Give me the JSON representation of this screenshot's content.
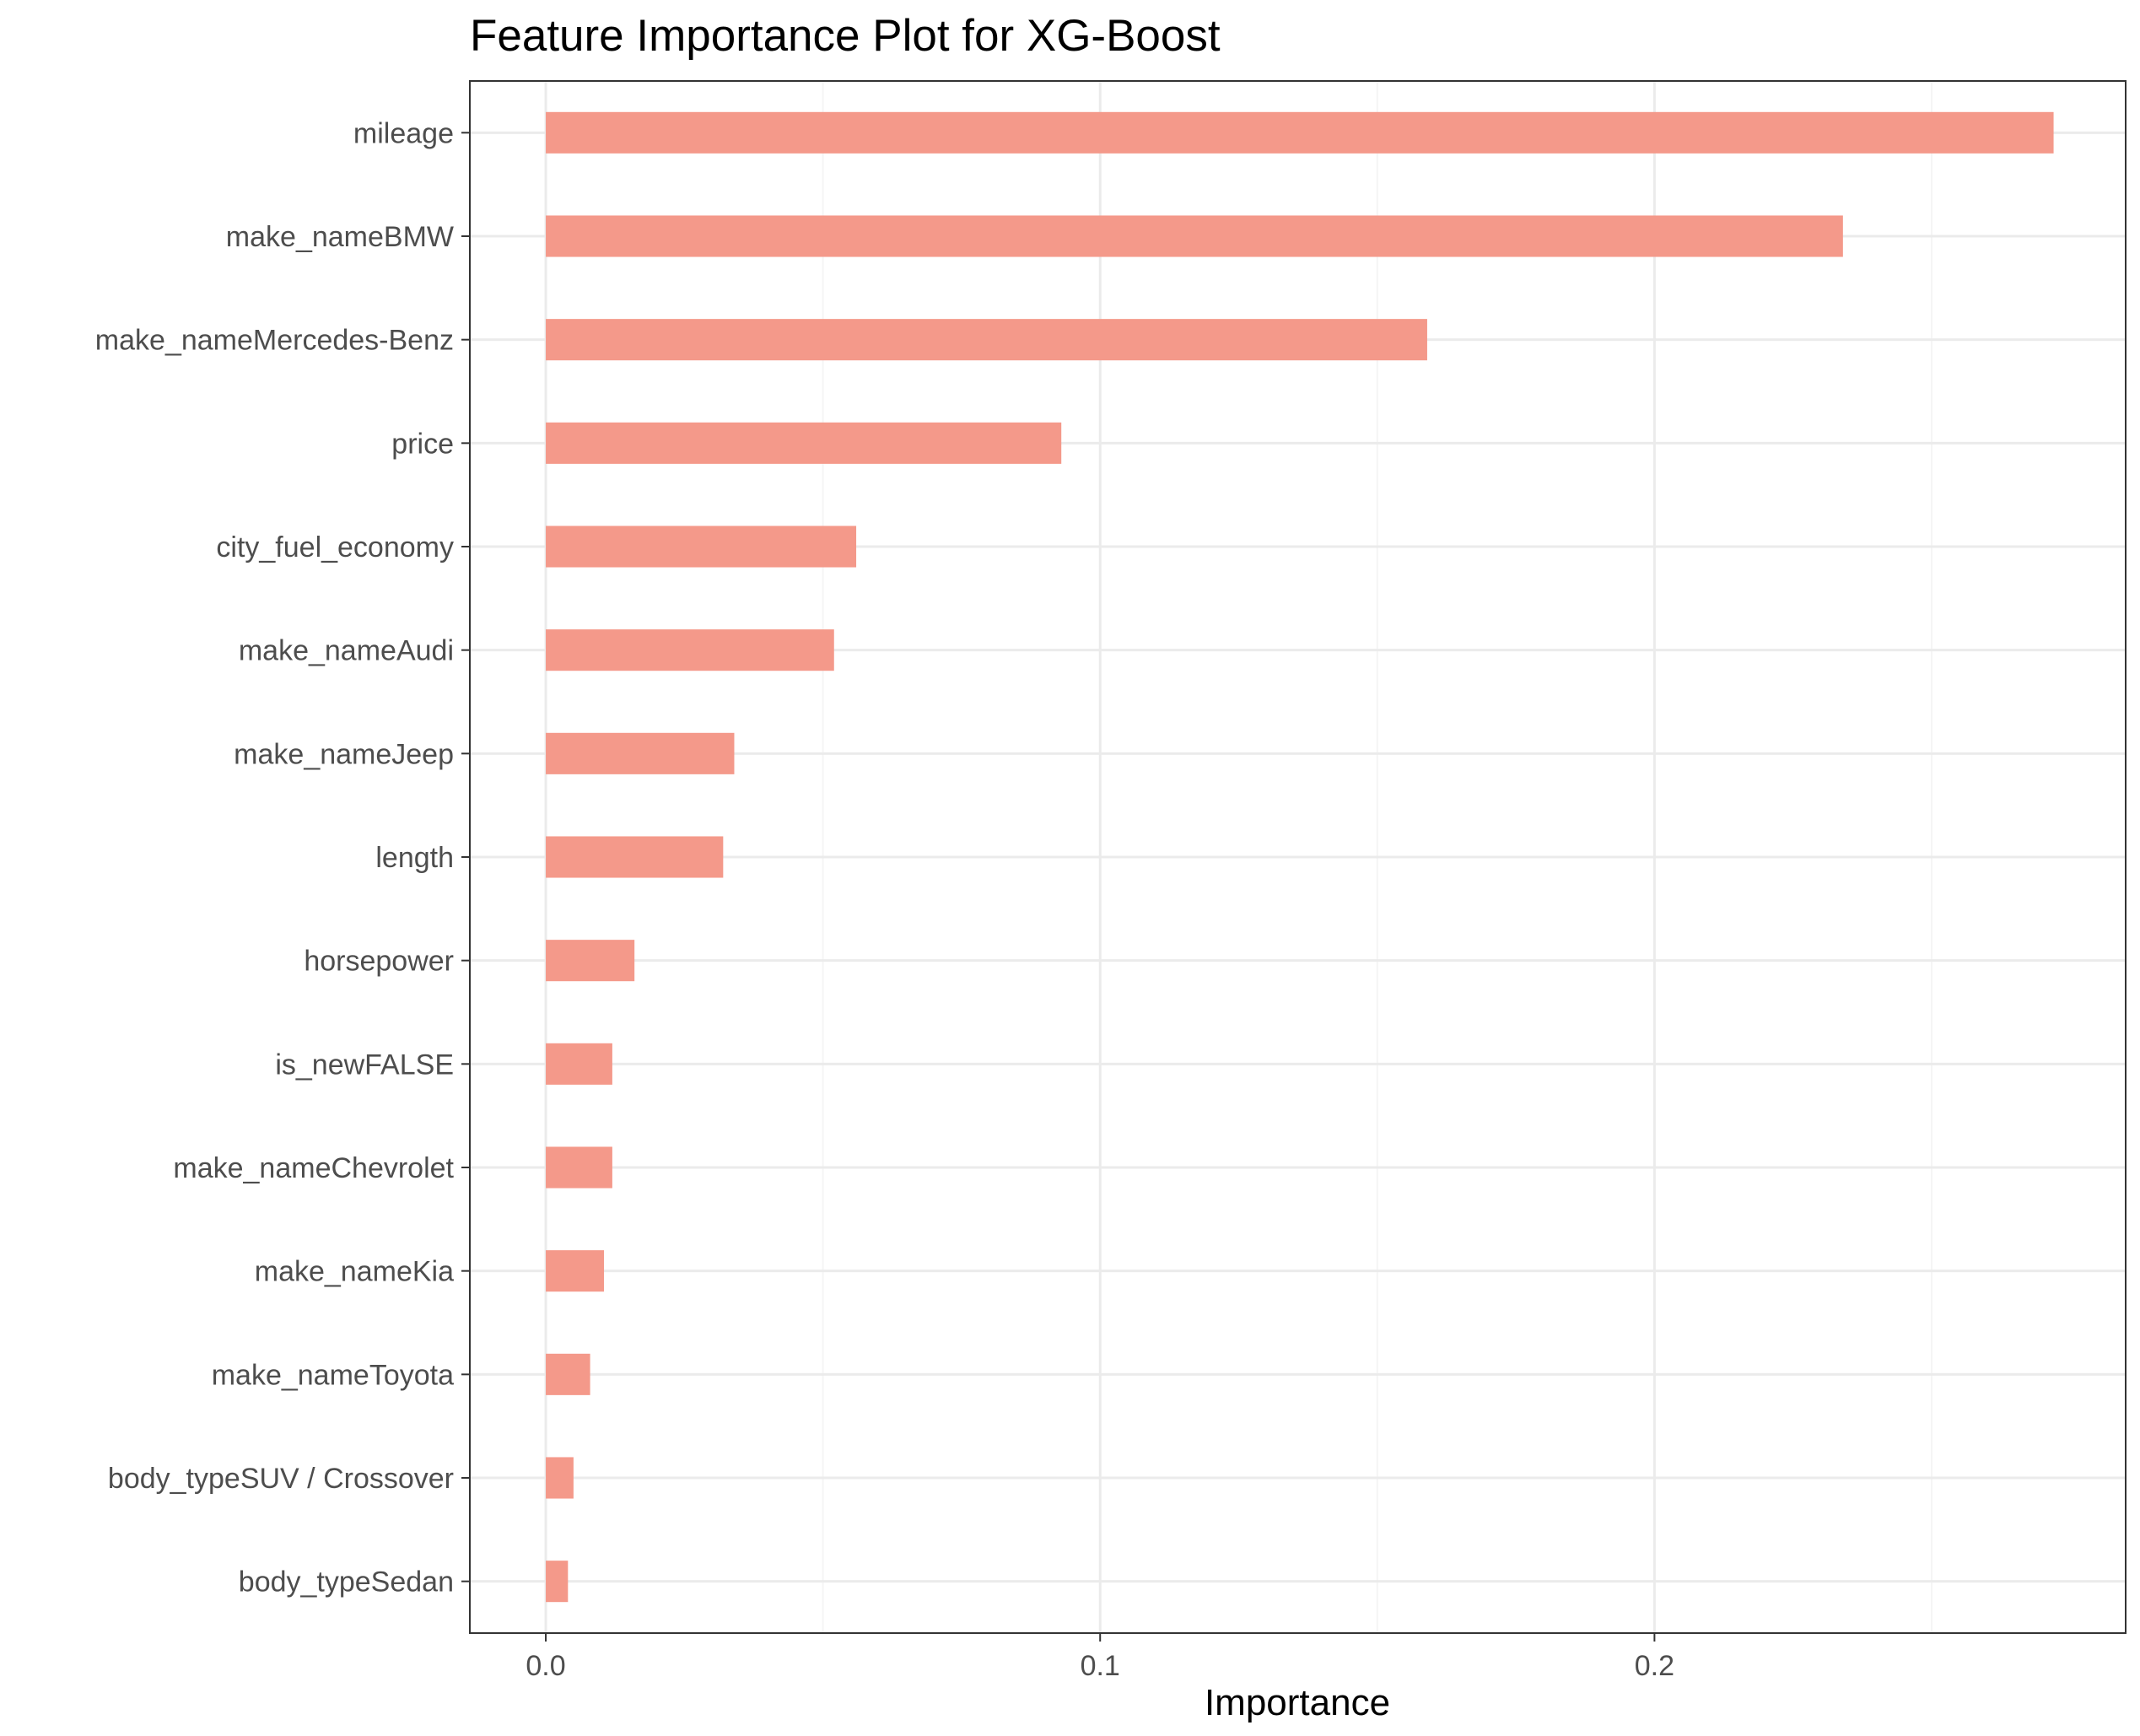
{
  "chart_data": {
    "type": "bar",
    "orientation": "horizontal",
    "title": "Feature Importance Plot for XG-Boost",
    "xlabel": "Importance",
    "ylabel": "",
    "xlim": [
      -0.0137,
      0.285
    ],
    "xticks": [
      {
        "value": 0.0,
        "label": "0.0"
      },
      {
        "value": 0.1,
        "label": "0.1"
      },
      {
        "value": 0.2,
        "label": "0.2"
      }
    ],
    "minor_gridlines": [
      0.05,
      0.15,
      0.25
    ],
    "grid": true,
    "legend": "none",
    "categories": [
      "mileage",
      "make_nameBMW",
      "make_nameMercedes-Benz",
      "price",
      "city_fuel_economy",
      "make_nameAudi",
      "make_nameJeep",
      "length",
      "horsepower",
      "is_newFALSE",
      "make_nameChevrolet",
      "make_nameKia",
      "make_nameToyota",
      "body_typeSUV / Crossover",
      "body_typeSedan"
    ],
    "values": [
      0.272,
      0.234,
      0.159,
      0.093,
      0.056,
      0.052,
      0.034,
      0.032,
      0.016,
      0.012,
      0.012,
      0.0105,
      0.008,
      0.005,
      0.004
    ],
    "colors": {
      "bar": "#f4998a",
      "panel_border": "#333333",
      "grid_major": "#ebebeb",
      "grid_minor": "#f5f5f5",
      "axis_text": "#4d4d4d",
      "title_text": "#000000"
    }
  }
}
